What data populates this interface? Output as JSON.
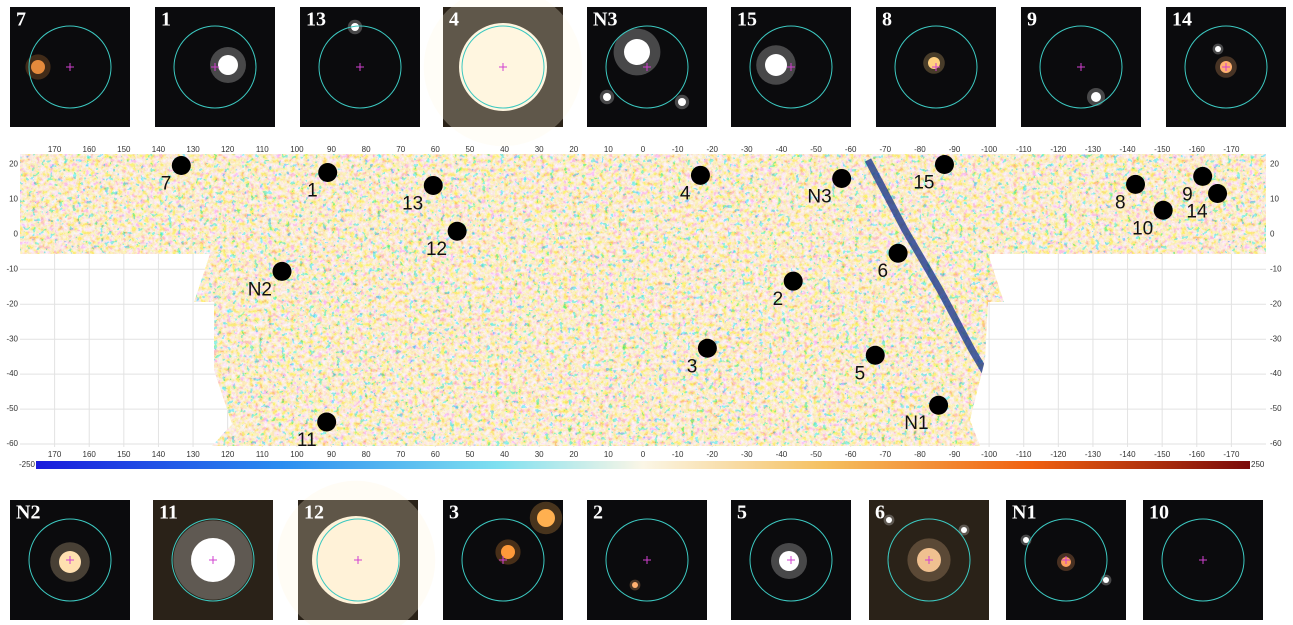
{
  "chart_data": {
    "type": "scatter",
    "labels": [
      "7",
      "1",
      "13",
      "12",
      "N2",
      "11",
      "4",
      "2",
      "3",
      "N3",
      "15",
      "6",
      "5",
      "N1",
      "8",
      "9",
      "14",
      "10"
    ],
    "x": [
      133.4,
      91.1,
      60.6,
      53.7,
      104.3,
      91.4,
      -16.6,
      -43.4,
      -18.6,
      -57.4,
      -87.1,
      -73.7,
      -67.1,
      -85.4,
      -142.3,
      -161.7,
      -166,
      -150.3
    ],
    "y": [
      19.7,
      17.7,
      14,
      0.9,
      -10.6,
      -53.7,
      16.9,
      -13.4,
      -32.6,
      16,
      20,
      -5.4,
      -34.6,
      -48.9,
      14.3,
      16.6,
      11.7,
      6.9
    ],
    "xlim": [
      180,
      -180
    ],
    "ylim": [
      -62,
      23
    ],
    "xticks": [
      170,
      160,
      150,
      140,
      130,
      120,
      110,
      100,
      90,
      80,
      70,
      60,
      50,
      40,
      30,
      20,
      10,
      0,
      -10,
      -20,
      -30,
      -40,
      -50,
      -60,
      -70,
      -80,
      -90,
      -100,
      -110,
      -120,
      -130,
      -140,
      -150,
      -160,
      -170
    ],
    "yticks": [
      20,
      10,
      0,
      -10,
      -20,
      -30,
      -40,
      -50,
      -60
    ],
    "colorbar_lim": [
      -250,
      250
    ],
    "grid": true,
    "thumbnails_top": [
      "7",
      "1",
      "13",
      "4",
      "N3",
      "15",
      "8",
      "9",
      "14"
    ],
    "thumbnails_bottom": [
      "N2",
      "11",
      "12",
      "3",
      "2",
      "5",
      "6",
      "N1",
      "10"
    ]
  }
}
